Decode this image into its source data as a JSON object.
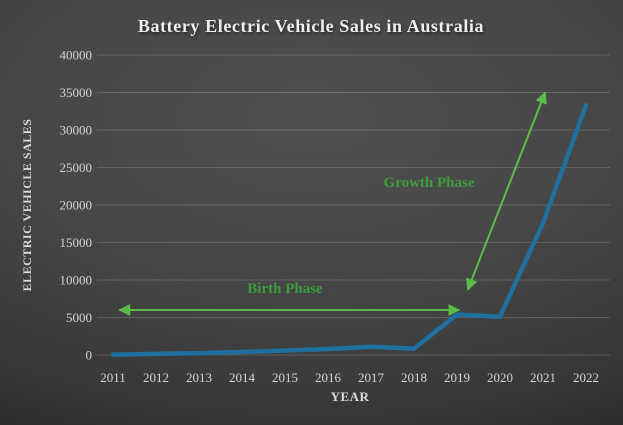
{
  "chart_data": {
    "type": "line",
    "title": "Battery Electric Vehicle Sales in Australia",
    "xlabel": "YEAR",
    "ylabel": "ELECTRIC VEHICLE SALES",
    "categories": [
      "2011",
      "2012",
      "2013",
      "2014",
      "2015",
      "2016",
      "2017",
      "2018",
      "2019",
      "2020",
      "2021",
      "2022"
    ],
    "series": [
      {
        "name": "Battery Electric Vehicle Sales",
        "values": [
          50,
          150,
          250,
          400,
          600,
          800,
          1100,
          850,
          5400,
          5100,
          17600,
          33300
        ]
      }
    ],
    "ylim": [
      0,
      40000
    ],
    "ytick_step": 5000,
    "yticks": [
      "0",
      "5000",
      "10000",
      "15000",
      "20000",
      "25000",
      "30000",
      "35000",
      "40000"
    ],
    "grid": "horizontal",
    "legend_position": "none",
    "colors": {
      "line": "#1f6f9f",
      "annotation_text": "#3a9e3a",
      "annotation_arrow": "#5cbc49",
      "background": "#3f3f3f",
      "text": "#e8e8e8"
    },
    "annotations": [
      {
        "label": "Birth Phase",
        "label_x": 2015.0,
        "label_y": 8300,
        "arrow": {
          "x1": 2011.15,
          "y1": 6000,
          "x2": 2019.05,
          "y2": 6000
        }
      },
      {
        "label": "Growth Phase",
        "label_x": 2018.35,
        "label_y": 22400,
        "arrow": {
          "x1": 2019.25,
          "y1": 8700,
          "x2": 2021.05,
          "y2": 35000
        }
      }
    ]
  }
}
